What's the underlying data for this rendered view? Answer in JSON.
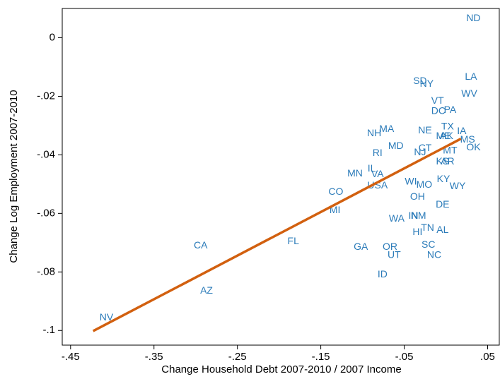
{
  "chart_data": {
    "type": "scatter",
    "xlabel": "Change Household Debt 2007-2010 / 2007 Income",
    "ylabel": "Change Log Employment 2007-2010",
    "xlim": [
      -0.46,
      0.064
    ],
    "ylim": [
      -0.105,
      0.01
    ],
    "xticks": [
      {
        "value": -0.45,
        "label": "-.45"
      },
      {
        "value": -0.35,
        "label": "-.35"
      },
      {
        "value": -0.25,
        "label": "-.25"
      },
      {
        "value": -0.15,
        "label": "-.15"
      },
      {
        "value": -0.05,
        "label": "-.05"
      },
      {
        "value": 0.05,
        "label": ".05"
      }
    ],
    "yticks": [
      0,
      {
        "value": -0.02,
        "label": "-.02"
      },
      {
        "value": -0.04,
        "label": "-.04"
      },
      {
        "value": -0.06,
        "label": "-.06"
      },
      {
        "value": -0.08,
        "label": "-.08"
      },
      {
        "value": -0.1,
        "label": "-.1"
      }
    ],
    "x": [
      0.033,
      0.03,
      0.028,
      -0.031,
      -0.023,
      -0.01,
      -0.009,
      0.005,
      0.002,
      0.019,
      -0.025,
      -0.003,
      0.001,
      0.026,
      0.033,
      -0.086,
      -0.071,
      -0.06,
      -0.025,
      -0.031,
      0.005,
      -0.082,
      -0.004,
      0.002,
      -0.089,
      -0.109,
      -0.082,
      -0.003,
      -0.042,
      -0.026,
      0.014,
      -0.082,
      -0.034,
      -0.132,
      -0.004,
      -0.133,
      -0.039,
      -0.033,
      -0.059,
      -0.022,
      -0.004,
      -0.034,
      -0.294,
      -0.183,
      -0.102,
      -0.067,
      -0.021,
      -0.062,
      -0.014,
      -0.076,
      -0.287,
      -0.407
    ],
    "series": [
      {
        "color": "#2b7bb9",
        "labels": [
          "ND",
          "LA",
          "WV",
          "SD",
          "NY",
          "VT",
          "DC",
          "PA",
          "TX",
          "IA",
          "NE",
          "ME",
          "AK",
          "MS",
          "OK",
          "NH",
          "MA",
          "MD",
          "CT",
          "NJ",
          "MT",
          "RI",
          "KS",
          "AR",
          "IL",
          "MN",
          "VA",
          "KY",
          "WI",
          "MO",
          "WY",
          "USA",
          "OH",
          "CO",
          "DE",
          "MI",
          "IN",
          "NM",
          "WA",
          "TN",
          "AL",
          "HI",
          "CA",
          "FL",
          "GA",
          "OR",
          "SC",
          "UT",
          "NC",
          "ID",
          "AZ",
          "NV"
        ],
        "values": [
          0.0065,
          -0.0135,
          -0.0193,
          -0.0149,
          -0.0159,
          -0.0217,
          -0.0251,
          -0.0248,
          -0.0304,
          -0.032,
          -0.0318,
          -0.0337,
          -0.0337,
          -0.0349,
          -0.0376,
          -0.0328,
          -0.0313,
          -0.0371,
          -0.0378,
          -0.0393,
          -0.0386,
          -0.0395,
          -0.0424,
          -0.0424,
          -0.0448,
          -0.0465,
          -0.0467,
          -0.0484,
          -0.0492,
          -0.0504,
          -0.0508,
          -0.0506,
          -0.0545,
          -0.0528,
          -0.0571,
          -0.059,
          -0.061,
          -0.061,
          -0.0619,
          -0.0651,
          -0.0658,
          -0.0665,
          -0.0711,
          -0.0696,
          -0.0716,
          -0.0716,
          -0.0708,
          -0.0743,
          -0.0743,
          -0.081,
          -0.0865,
          -0.0957
        ]
      }
    ],
    "fit": {
      "color": "#d2600f",
      "x": [
        -0.423,
        0.018
      ],
      "y": [
        -0.1002,
        -0.0345
      ]
    }
  }
}
